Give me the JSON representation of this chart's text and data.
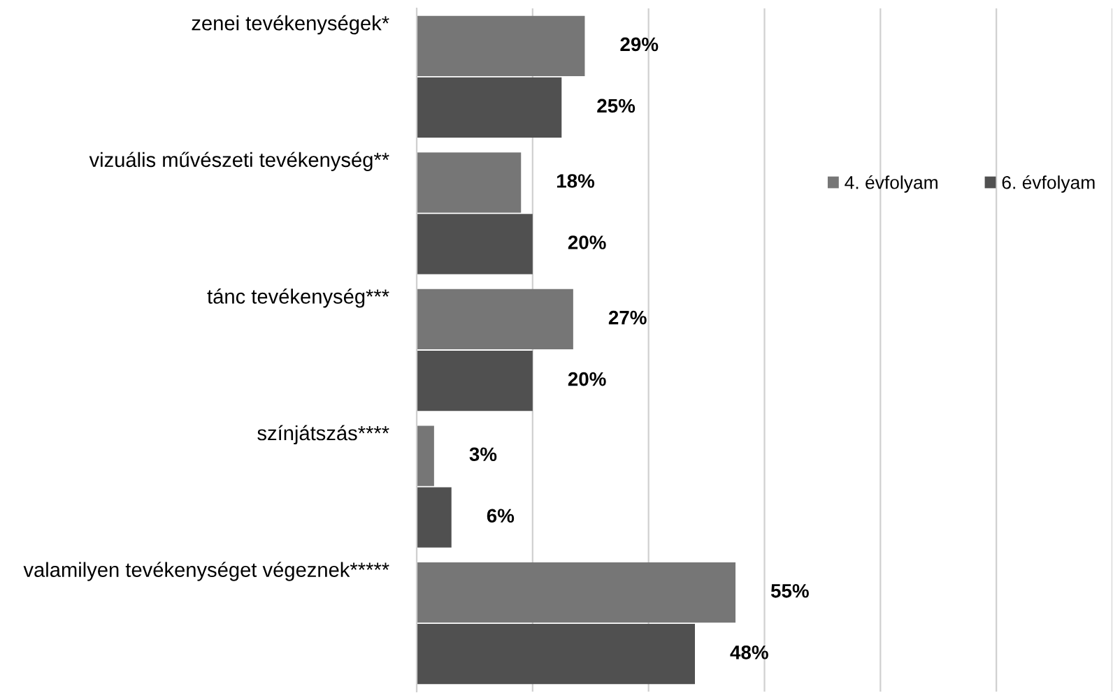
{
  "chart_data": {
    "type": "bar",
    "orientation": "horizontal",
    "categories": [
      "zenei tevékenységek*",
      "vizuális művészeti tevékenység**",
      "tánc tevékenység***",
      "színjátszás****",
      "valamilyen tevékenységet végeznek*****"
    ],
    "series": [
      {
        "name": "4. évfolyam",
        "color": "#767676",
        "values": [
          29,
          18,
          27,
          3,
          55
        ],
        "value_labels": [
          "29%",
          "18%",
          "27%",
          "3%",
          "55%"
        ]
      },
      {
        "name": "6. évfolyam",
        "color": "#505050",
        "values": [
          25,
          20,
          20,
          6,
          48
        ],
        "value_labels": [
          "25%",
          "20%",
          "20%",
          "6%",
          "48%"
        ]
      }
    ],
    "xlim": [
      0,
      120
    ],
    "xticks": [
      {
        "value": 0,
        "label": null
      },
      {
        "value": 20,
        "label": null
      },
      {
        "value": 40,
        "label": null
      },
      {
        "value": 60,
        "label": null
      },
      {
        "value": 80,
        "label": null
      },
      {
        "value": 100,
        "label": null
      },
      {
        "value": 120,
        "label": null
      }
    ],
    "grid": "x",
    "legend": "top right",
    "tick_labels": "y"
  }
}
